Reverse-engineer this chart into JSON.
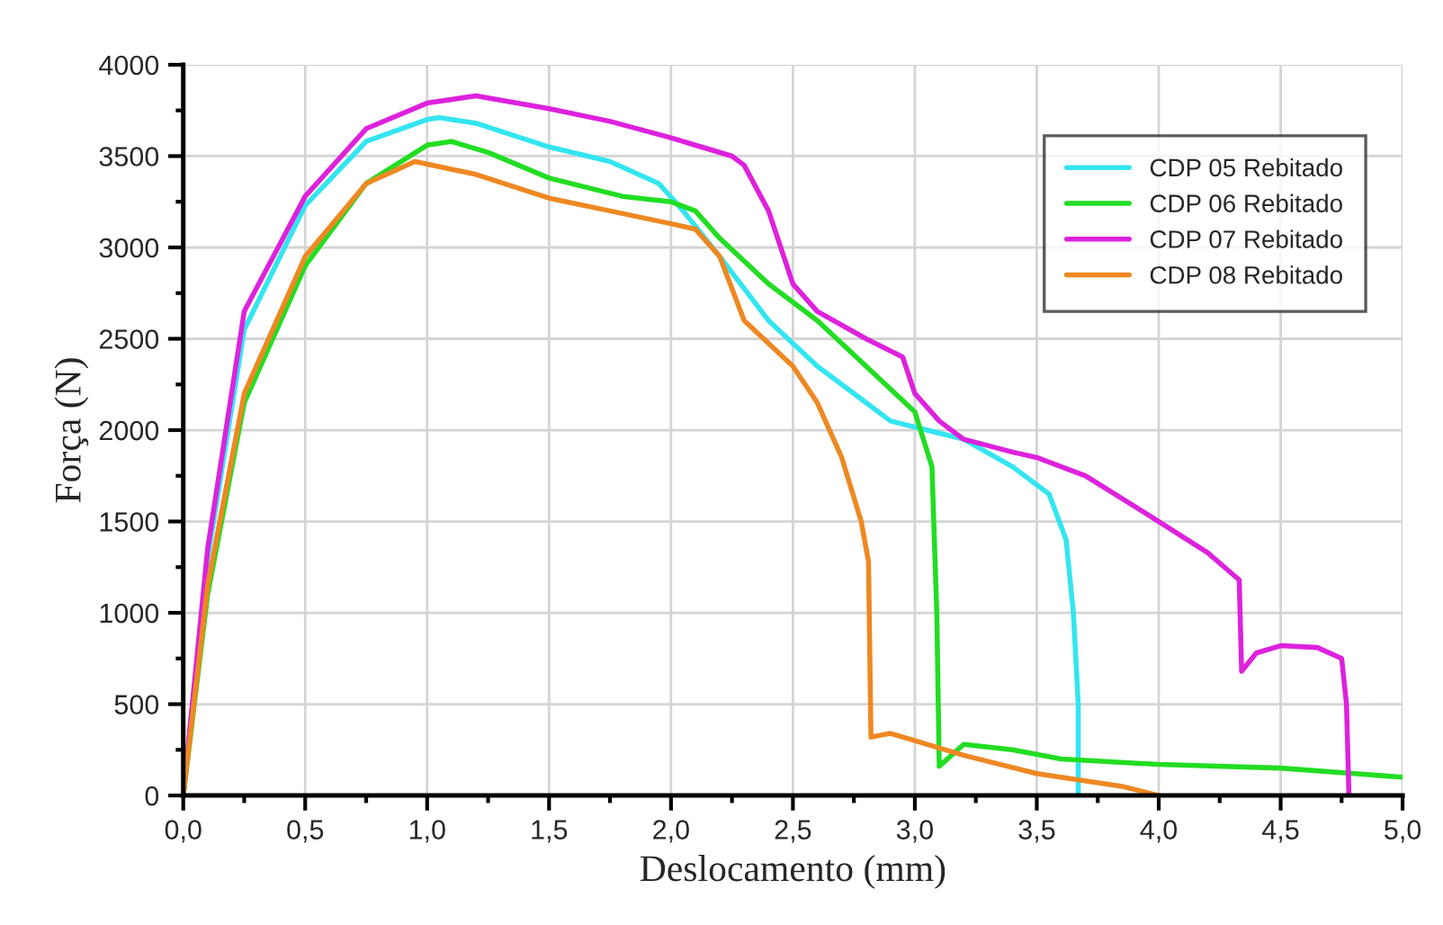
{
  "chart_data": {
    "type": "line",
    "xlabel": "Deslocamento (mm)",
    "ylabel": "Força (N)",
    "xlim": [
      0,
      5
    ],
    "ylim": [
      0,
      4000
    ],
    "xticks": [
      {
        "value": 0,
        "label": "0,0"
      },
      {
        "value": 0.25,
        "label": null
      },
      {
        "value": 0.5,
        "label": "0,5"
      },
      {
        "value": 0.75,
        "label": null
      },
      {
        "value": 1,
        "label": "1,0"
      },
      {
        "value": 1.25,
        "label": null
      },
      {
        "value": 1.5,
        "label": "1,5"
      },
      {
        "value": 1.75,
        "label": null
      },
      {
        "value": 2,
        "label": "2,0"
      },
      {
        "value": 2.25,
        "label": null
      },
      {
        "value": 2.5,
        "label": "2,5"
      },
      {
        "value": 2.75,
        "label": null
      },
      {
        "value": 3,
        "label": "3,0"
      },
      {
        "value": 3.25,
        "label": null
      },
      {
        "value": 3.5,
        "label": "3,5"
      },
      {
        "value": 3.75,
        "label": null
      },
      {
        "value": 4,
        "label": "4,0"
      },
      {
        "value": 4.25,
        "label": null
      },
      {
        "value": 4.5,
        "label": "4,5"
      },
      {
        "value": 4.75,
        "label": null
      },
      {
        "value": 5,
        "label": "5,0"
      }
    ],
    "yticks": [
      0,
      {
        "value": 250,
        "label": null
      },
      500,
      {
        "value": 750,
        "label": null
      },
      1000,
      {
        "value": 1250,
        "label": null
      },
      1500,
      {
        "value": 1750,
        "label": null
      },
      2000,
      {
        "value": 2250,
        "label": null
      },
      2500,
      {
        "value": 2750,
        "label": null
      },
      3000,
      {
        "value": 3250,
        "label": null
      },
      3500,
      {
        "value": 3750,
        "label": null
      },
      4000
    ],
    "grid": true,
    "legend": "top right",
    "line_style": "solid",
    "series": [
      {
        "name": "CDP 05 Rebitado",
        "color": "#33e5f0",
        "x": [
          0,
          0.1,
          0.25,
          0.5,
          0.75,
          1.0,
          1.05,
          1.2,
          1.5,
          1.75,
          1.95,
          2.05,
          2.2,
          2.4,
          2.6,
          2.8,
          2.9,
          3.05,
          3.2,
          3.4,
          3.55,
          3.62,
          3.65,
          3.67,
          3.67
        ],
        "values": [
          0,
          1300,
          2550,
          3230,
          3580,
          3700,
          3710,
          3680,
          3550,
          3470,
          3350,
          3200,
          2950,
          2600,
          2350,
          2150,
          2050,
          2000,
          1950,
          1800,
          1650,
          1400,
          1000,
          500,
          0
        ]
      },
      {
        "name": "CDP 06 Rebitado",
        "color": "#22dd22",
        "x": [
          0,
          0.1,
          0.25,
          0.5,
          0.75,
          1.0,
          1.1,
          1.25,
          1.5,
          1.8,
          2.0,
          2.1,
          2.2,
          2.4,
          2.6,
          2.8,
          3.0,
          3.07,
          3.09,
          3.1,
          3.2,
          3.4,
          3.6,
          4.0,
          4.5,
          5.0
        ],
        "values": [
          0,
          1100,
          2150,
          2900,
          3350,
          3560,
          3580,
          3520,
          3380,
          3280,
          3250,
          3200,
          3050,
          2800,
          2600,
          2350,
          2100,
          1800,
          1000,
          160,
          280,
          250,
          200,
          170,
          150,
          100
        ]
      },
      {
        "name": "CDP 07 Rebitado",
        "color": "#dd22dd",
        "x": [
          0,
          0.1,
          0.25,
          0.5,
          0.75,
          1.0,
          1.2,
          1.5,
          1.75,
          2.0,
          2.25,
          2.3,
          2.4,
          2.5,
          2.6,
          2.8,
          2.95,
          3.0,
          3.1,
          3.2,
          3.4,
          3.5,
          3.7,
          4.0,
          4.2,
          4.33,
          4.34,
          4.4,
          4.5,
          4.65,
          4.75,
          4.77,
          4.78
        ],
        "values": [
          0,
          1350,
          2650,
          3280,
          3650,
          3790,
          3830,
          3760,
          3690,
          3600,
          3500,
          3450,
          3200,
          2800,
          2650,
          2500,
          2400,
          2200,
          2050,
          1950,
          1880,
          1850,
          1750,
          1500,
          1330,
          1180,
          680,
          780,
          820,
          810,
          750,
          500,
          0
        ]
      },
      {
        "name": "CDP 08 Rebitado",
        "color": "#ee8822",
        "x": [
          0,
          0.1,
          0.25,
          0.5,
          0.75,
          0.95,
          1.2,
          1.5,
          1.75,
          2.0,
          2.1,
          2.2,
          2.3,
          2.5,
          2.6,
          2.7,
          2.78,
          2.81,
          2.82,
          2.9,
          3.0,
          3.2,
          3.5,
          3.85,
          4.0
        ],
        "values": [
          0,
          1150,
          2200,
          2950,
          3350,
          3470,
          3400,
          3270,
          3200,
          3130,
          3100,
          2950,
          2600,
          2350,
          2150,
          1850,
          1500,
          1280,
          320,
          340,
          300,
          220,
          120,
          50,
          0
        ]
      }
    ]
  }
}
